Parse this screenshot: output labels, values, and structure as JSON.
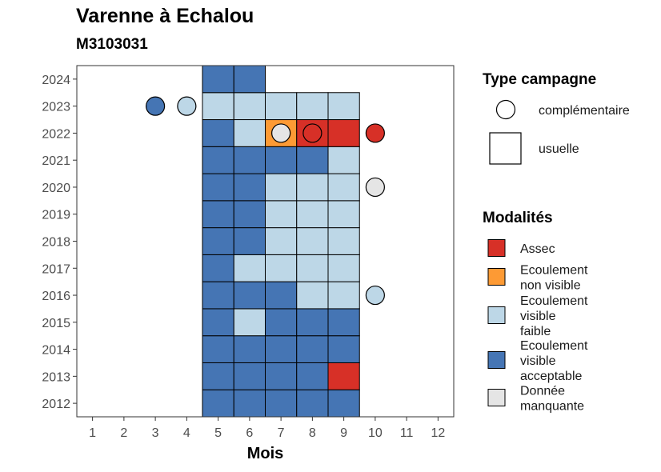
{
  "chart_data": {
    "type": "heatmap",
    "title": "Varenne à Echalou",
    "subtitle": "M3103031",
    "xlabel": "Mois",
    "ylabel": "",
    "x_ticks": [
      1,
      2,
      3,
      4,
      5,
      6,
      7,
      8,
      9,
      10,
      11,
      12
    ],
    "y_ticks": [
      2012,
      2013,
      2014,
      2015,
      2016,
      2017,
      2018,
      2019,
      2020,
      2021,
      2022,
      2023,
      2024
    ],
    "xlim": [
      0.5,
      12.5
    ],
    "ylim": [
      2011.5,
      2024.5
    ],
    "grid": false,
    "legend_position": "right",
    "legend_type_title": "Type campagne",
    "legend_mod_title": "Modalités",
    "campaign_types": [
      {
        "key": "complementaire",
        "label": "complémentaire",
        "shape": "circle"
      },
      {
        "key": "usuelle",
        "label": "usuelle",
        "shape": "square"
      }
    ],
    "modalities": [
      {
        "key": "assec",
        "lines": [
          "Assec"
        ],
        "color": "#d73027"
      },
      {
        "key": "nonvisible",
        "lines": [
          "Ecoulement",
          "non visible"
        ],
        "color": "#fd9a34"
      },
      {
        "key": "faible",
        "lines": [
          "Ecoulement",
          "visible",
          "faible"
        ],
        "color": "#bdd7e7"
      },
      {
        "key": "acceptable",
        "lines": [
          "Ecoulement",
          "visible",
          "acceptable"
        ],
        "color": "#4575b4"
      },
      {
        "key": "manquante",
        "lines": [
          "Donnée",
          "manquante"
        ],
        "color": "#e5e5e5"
      }
    ],
    "usuelle": [
      {
        "year": 2012,
        "month": 5,
        "modality": "acceptable"
      },
      {
        "year": 2012,
        "month": 6,
        "modality": "acceptable"
      },
      {
        "year": 2012,
        "month": 7,
        "modality": "acceptable"
      },
      {
        "year": 2012,
        "month": 8,
        "modality": "acceptable"
      },
      {
        "year": 2012,
        "month": 9,
        "modality": "acceptable"
      },
      {
        "year": 2013,
        "month": 5,
        "modality": "acceptable"
      },
      {
        "year": 2013,
        "month": 6,
        "modality": "acceptable"
      },
      {
        "year": 2013,
        "month": 7,
        "modality": "acceptable"
      },
      {
        "year": 2013,
        "month": 8,
        "modality": "acceptable"
      },
      {
        "year": 2013,
        "month": 9,
        "modality": "assec"
      },
      {
        "year": 2014,
        "month": 5,
        "modality": "acceptable"
      },
      {
        "year": 2014,
        "month": 6,
        "modality": "acceptable"
      },
      {
        "year": 2014,
        "month": 7,
        "modality": "acceptable"
      },
      {
        "year": 2014,
        "month": 8,
        "modality": "acceptable"
      },
      {
        "year": 2014,
        "month": 9,
        "modality": "acceptable"
      },
      {
        "year": 2015,
        "month": 5,
        "modality": "acceptable"
      },
      {
        "year": 2015,
        "month": 6,
        "modality": "faible"
      },
      {
        "year": 2015,
        "month": 7,
        "modality": "acceptable"
      },
      {
        "year": 2015,
        "month": 8,
        "modality": "acceptable"
      },
      {
        "year": 2015,
        "month": 9,
        "modality": "acceptable"
      },
      {
        "year": 2016,
        "month": 5,
        "modality": "acceptable"
      },
      {
        "year": 2016,
        "month": 6,
        "modality": "acceptable"
      },
      {
        "year": 2016,
        "month": 7,
        "modality": "acceptable"
      },
      {
        "year": 2016,
        "month": 8,
        "modality": "faible"
      },
      {
        "year": 2016,
        "month": 9,
        "modality": "faible"
      },
      {
        "year": 2017,
        "month": 5,
        "modality": "acceptable"
      },
      {
        "year": 2017,
        "month": 6,
        "modality": "faible"
      },
      {
        "year": 2017,
        "month": 7,
        "modality": "faible"
      },
      {
        "year": 2017,
        "month": 8,
        "modality": "faible"
      },
      {
        "year": 2017,
        "month": 9,
        "modality": "faible"
      },
      {
        "year": 2018,
        "month": 5,
        "modality": "acceptable"
      },
      {
        "year": 2018,
        "month": 6,
        "modality": "acceptable"
      },
      {
        "year": 2018,
        "month": 7,
        "modality": "faible"
      },
      {
        "year": 2018,
        "month": 8,
        "modality": "faible"
      },
      {
        "year": 2018,
        "month": 9,
        "modality": "faible"
      },
      {
        "year": 2019,
        "month": 5,
        "modality": "acceptable"
      },
      {
        "year": 2019,
        "month": 6,
        "modality": "acceptable"
      },
      {
        "year": 2019,
        "month": 7,
        "modality": "faible"
      },
      {
        "year": 2019,
        "month": 8,
        "modality": "faible"
      },
      {
        "year": 2019,
        "month": 9,
        "modality": "faible"
      },
      {
        "year": 2020,
        "month": 5,
        "modality": "acceptable"
      },
      {
        "year": 2020,
        "month": 6,
        "modality": "acceptable"
      },
      {
        "year": 2020,
        "month": 7,
        "modality": "faible"
      },
      {
        "year": 2020,
        "month": 8,
        "modality": "faible"
      },
      {
        "year": 2020,
        "month": 9,
        "modality": "faible"
      },
      {
        "year": 2021,
        "month": 5,
        "modality": "acceptable"
      },
      {
        "year": 2021,
        "month": 6,
        "modality": "acceptable"
      },
      {
        "year": 2021,
        "month": 7,
        "modality": "acceptable"
      },
      {
        "year": 2021,
        "month": 8,
        "modality": "acceptable"
      },
      {
        "year": 2021,
        "month": 9,
        "modality": "faible"
      },
      {
        "year": 2022,
        "month": 5,
        "modality": "acceptable"
      },
      {
        "year": 2022,
        "month": 6,
        "modality": "faible"
      },
      {
        "year": 2022,
        "month": 7,
        "modality": "nonvisible"
      },
      {
        "year": 2022,
        "month": 8,
        "modality": "assec"
      },
      {
        "year": 2022,
        "month": 9,
        "modality": "assec"
      },
      {
        "year": 2023,
        "month": 5,
        "modality": "faible"
      },
      {
        "year": 2023,
        "month": 6,
        "modality": "faible"
      },
      {
        "year": 2023,
        "month": 7,
        "modality": "faible"
      },
      {
        "year": 2023,
        "month": 8,
        "modality": "faible"
      },
      {
        "year": 2023,
        "month": 9,
        "modality": "faible"
      },
      {
        "year": 2024,
        "month": 5,
        "modality": "acceptable"
      },
      {
        "year": 2024,
        "month": 6,
        "modality": "acceptable"
      }
    ],
    "complementaire": [
      {
        "year": 2023,
        "month": 3,
        "modality": "acceptable"
      },
      {
        "year": 2023,
        "month": 4,
        "modality": "faible"
      },
      {
        "year": 2022,
        "month": 7,
        "modality": "manquante"
      },
      {
        "year": 2022,
        "month": 8,
        "modality": "assec"
      },
      {
        "year": 2022,
        "month": 10,
        "modality": "assec"
      },
      {
        "year": 2020,
        "month": 10,
        "modality": "manquante"
      },
      {
        "year": 2016,
        "month": 10,
        "modality": "faible"
      }
    ]
  }
}
